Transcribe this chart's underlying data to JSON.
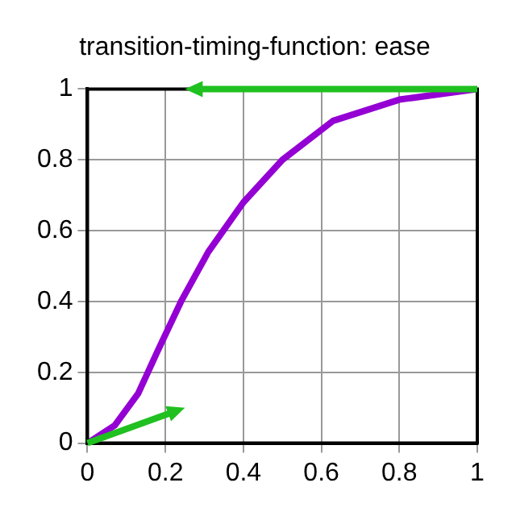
{
  "chart_data": {
    "type": "line",
    "title": "transition-timing-function: ease",
    "series": [
      {
        "color": "#9400d3",
        "x": [
          0,
          0.07,
          0.13,
          0.18,
          0.24,
          0.31,
          0.4,
          0.5,
          0.63,
          0.8,
          1
        ],
        "values": [
          0,
          0.05,
          0.14,
          0.26,
          0.4,
          0.54,
          0.68,
          0.8,
          0.91,
          0.97,
          1
        ]
      }
    ],
    "xlim": [
      0,
      1
    ],
    "ylim": [
      0,
      1
    ],
    "xticks": [
      0,
      0.2,
      0.4,
      0.6,
      0.8,
      1
    ],
    "yticks": [
      0,
      0.2,
      0.4,
      0.6,
      0.8,
      1
    ],
    "grid": true,
    "legend": false,
    "marker": "none",
    "line_style": "solid"
  }
}
